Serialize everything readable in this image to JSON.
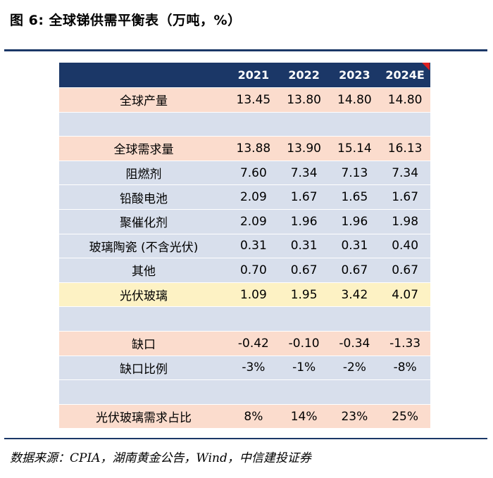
{
  "figure": {
    "title": "图 6:  全球锑供需平衡表（万吨，%）"
  },
  "table": {
    "header": [
      "",
      "2021",
      "2022",
      "2023",
      "2024E"
    ],
    "rows": [
      {
        "label": "全球产量",
        "values": [
          "13.45",
          "13.80",
          "14.80",
          "14.80"
        ],
        "style": "pink"
      },
      {
        "label": "",
        "values": [
          "",
          "",
          "",
          ""
        ],
        "style": "blue"
      },
      {
        "label": "全球需求量",
        "values": [
          "13.88",
          "13.90",
          "15.14",
          "16.13"
        ],
        "style": "pink"
      },
      {
        "label": "阻燃剂",
        "values": [
          "7.60",
          "7.34",
          "7.13",
          "7.34"
        ],
        "style": "blue"
      },
      {
        "label": "铅酸电池",
        "values": [
          "2.09",
          "1.67",
          "1.65",
          "1.67"
        ],
        "style": "blue"
      },
      {
        "label": "聚催化剂",
        "values": [
          "2.09",
          "1.96",
          "1.96",
          "1.98"
        ],
        "style": "blue"
      },
      {
        "label": "玻璃陶瓷 (不含光伏)",
        "values": [
          "0.31",
          "0.31",
          "0.31",
          "0.40"
        ],
        "style": "blue"
      },
      {
        "label": "其他",
        "values": [
          "0.70",
          "0.67",
          "0.67",
          "0.67"
        ],
        "style": "blue"
      },
      {
        "label": "光伏玻璃",
        "values": [
          "1.09",
          "1.95",
          "3.42",
          "4.07"
        ],
        "style": "yellow"
      },
      {
        "label": "",
        "values": [
          "",
          "",
          "",
          ""
        ],
        "style": "blue"
      },
      {
        "label": "缺口",
        "values": [
          "-0.42",
          "-0.10",
          "-0.34",
          "-1.33"
        ],
        "style": "pink"
      },
      {
        "label": "缺口比例",
        "values": [
          "-3%",
          "-1%",
          "-2%",
          "-8%"
        ],
        "style": "blue"
      },
      {
        "label": "",
        "values": [
          "",
          "",
          "",
          ""
        ],
        "style": "blue"
      },
      {
        "label": "光伏玻璃需求占比",
        "values": [
          "8%",
          "14%",
          "23%",
          "25%"
        ],
        "style": "pink"
      }
    ]
  },
  "source": {
    "text": "数据来源：CPIA，湖南黄金公告，Wind，中信建投证券"
  },
  "colors": {
    "header_bg": "#1b3767",
    "pink_row": "#fbdccd",
    "blue_row": "#d8dfec",
    "yellow_row": "#fdf2c4",
    "corner_mark": "#e02020"
  }
}
